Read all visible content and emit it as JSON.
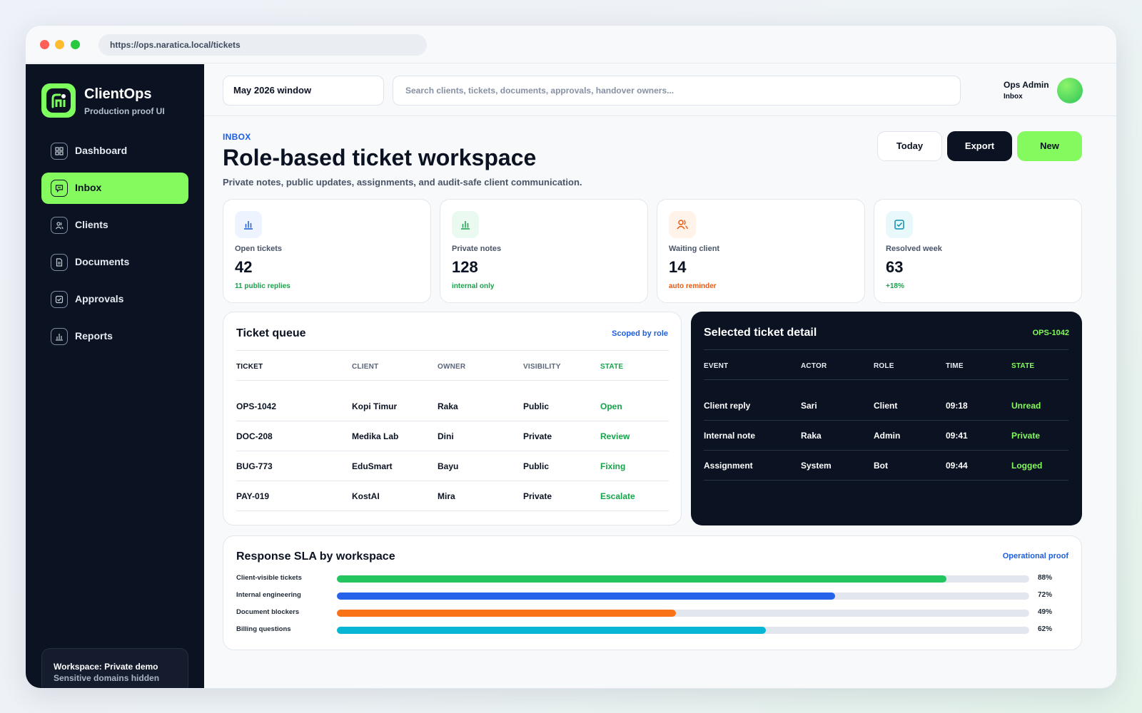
{
  "browser": {
    "url": "https://ops.naratica.local/tickets"
  },
  "brand": {
    "name": "ClientOps",
    "subtitle": "Production proof UI"
  },
  "sidebar": {
    "items": [
      {
        "label": "Dashboard",
        "icon": "dashboard-icon",
        "active": false
      },
      {
        "label": "Inbox",
        "icon": "inbox-icon",
        "active": true
      },
      {
        "label": "Clients",
        "icon": "users-icon",
        "active": false
      },
      {
        "label": "Documents",
        "icon": "document-icon",
        "active": false
      },
      {
        "label": "Approvals",
        "icon": "check-square-icon",
        "active": false
      },
      {
        "label": "Reports",
        "icon": "bar-chart-icon",
        "active": false
      }
    ],
    "workspace": {
      "title": "Workspace: Private demo",
      "subtitle": "Sensitive domains hidden"
    }
  },
  "topbar": {
    "window_select": "May 2026 window",
    "search_placeholder": "Search clients, tickets, documents, approvals, handover owners...",
    "user": {
      "name": "Ops Admin",
      "role": "Inbox"
    }
  },
  "header": {
    "kicker": "INBOX",
    "title": "Role-based ticket workspace",
    "subtitle": "Private notes, public updates, assignments, and audit-safe client communication.",
    "buttons": {
      "today": "Today",
      "export": "Export",
      "new": "New"
    }
  },
  "stats": [
    {
      "label": "Open tickets",
      "value": "42",
      "note": "11 public replies",
      "icon": "bar-chart-icon",
      "color": "#1d5de0",
      "bg": "#edf3ff"
    },
    {
      "label": "Private notes",
      "value": "128",
      "note": "internal only",
      "icon": "bar-chart-icon",
      "color": "#16a34a",
      "bg": "#eafaf0"
    },
    {
      "label": "Waiting client",
      "value": "14",
      "note": "auto reminder",
      "icon": "users-icon",
      "color": "#ea580c",
      "bg": "#fff3ea"
    },
    {
      "label": "Resolved week",
      "value": "63",
      "note": "+18%",
      "icon": "check-square-icon",
      "color": "#0891b2",
      "bg": "#e9f8fb"
    }
  ],
  "queue": {
    "title": "Ticket queue",
    "tag": "Scoped by role",
    "columns": [
      "TICKET",
      "CLIENT",
      "OWNER",
      "VISIBILITY",
      "STATE"
    ],
    "rows": [
      [
        "OPS-1042",
        "Kopi Timur",
        "Raka",
        "Public",
        "Open"
      ],
      [
        "DOC-208",
        "Medika Lab",
        "Dini",
        "Private",
        "Review"
      ],
      [
        "BUG-773",
        "EduSmart",
        "Bayu",
        "Public",
        "Fixing"
      ],
      [
        "PAY-019",
        "KostAI",
        "Mira",
        "Private",
        "Escalate"
      ]
    ]
  },
  "detail": {
    "title": "Selected ticket detail",
    "tag": "OPS-1042",
    "columns": [
      "EVENT",
      "ACTOR",
      "ROLE",
      "TIME",
      "STATE"
    ],
    "rows": [
      [
        "Client reply",
        "Sari",
        "Client",
        "09:18",
        "Unread"
      ],
      [
        "Internal note",
        "Raka",
        "Admin",
        "09:41",
        "Private"
      ],
      [
        "Assignment",
        "System",
        "Bot",
        "09:44",
        "Logged"
      ]
    ]
  },
  "sla": {
    "title": "Response SLA by workspace",
    "tag": "Operational proof",
    "rows": [
      {
        "label": "Client-visible tickets",
        "value": 88,
        "pct": "88%",
        "color": "#22c55e"
      },
      {
        "label": "Internal engineering",
        "value": 72,
        "pct": "72%",
        "color": "#2563eb"
      },
      {
        "label": "Document blockers",
        "value": 49,
        "pct": "49%",
        "color": "#f97316"
      },
      {
        "label": "Billing questions",
        "value": 62,
        "pct": "62%",
        "color": "#06b6d4"
      }
    ]
  },
  "colors": {
    "accent": "#84fa5e",
    "dark": "#0b1222",
    "link": "#1d5de0",
    "state_green": "#16a34a",
    "detail_state": "#84fa5e"
  }
}
